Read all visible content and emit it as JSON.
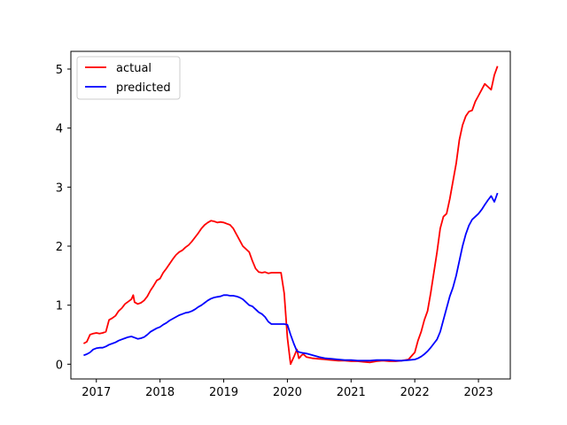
{
  "chart_data": {
    "type": "line",
    "title": "",
    "xlabel": "",
    "ylabel": "",
    "xlim": [
      2016.6,
      2023.5
    ],
    "ylim": [
      -0.25,
      5.3
    ],
    "grid": false,
    "legend_position": "top-left",
    "x_ticks": [
      2017,
      2018,
      2019,
      2020,
      2021,
      2022,
      2023
    ],
    "x_tick_labels": [
      "2017",
      "2018",
      "2019",
      "2020",
      "2021",
      "2022",
      "2023"
    ],
    "y_ticks": [
      0,
      1,
      2,
      3,
      4,
      5
    ],
    "y_tick_labels": [
      "0",
      "1",
      "2",
      "3",
      "4",
      "5"
    ],
    "series": [
      {
        "name": "actual",
        "color": "#ff0000",
        "x": [
          2016.8,
          2016.85,
          2016.9,
          2016.95,
          2017.0,
          2017.05,
          2017.1,
          2017.15,
          2017.2,
          2017.25,
          2017.3,
          2017.35,
          2017.4,
          2017.45,
          2017.5,
          2017.55,
          2017.58,
          2017.6,
          2017.65,
          2017.7,
          2017.75,
          2017.8,
          2017.85,
          2017.9,
          2017.95,
          2018.0,
          2018.05,
          2018.1,
          2018.15,
          2018.2,
          2018.25,
          2018.3,
          2018.35,
          2018.4,
          2018.45,
          2018.5,
          2018.55,
          2018.6,
          2018.65,
          2018.7,
          2018.75,
          2018.8,
          2018.85,
          2018.9,
          2018.95,
          2019.0,
          2019.05,
          2019.1,
          2019.15,
          2019.2,
          2019.25,
          2019.3,
          2019.35,
          2019.4,
          2019.45,
          2019.5,
          2019.55,
          2019.6,
          2019.65,
          2019.7,
          2019.75,
          2019.8,
          2019.85,
          2019.9,
          2019.95,
          2020.0,
          2020.05,
          2020.1,
          2020.15,
          2020.18,
          2020.2,
          2020.22,
          2020.25,
          2020.3,
          2020.4,
          2020.5,
          2020.6,
          2020.7,
          2020.8,
          2020.9,
          2021.0,
          2021.1,
          2021.2,
          2021.3,
          2021.4,
          2021.5,
          2021.6,
          2021.7,
          2021.8,
          2021.9,
          2022.0,
          2022.05,
          2022.1,
          2022.15,
          2022.2,
          2022.25,
          2022.3,
          2022.35,
          2022.4,
          2022.45,
          2022.5,
          2022.55,
          2022.6,
          2022.65,
          2022.7,
          2022.75,
          2022.8,
          2022.85,
          2022.9,
          2022.95,
          2023.0,
          2023.05,
          2023.1,
          2023.15,
          2023.2,
          2023.25,
          2023.3
        ],
        "y": [
          0.35,
          0.38,
          0.5,
          0.52,
          0.53,
          0.52,
          0.53,
          0.55,
          0.75,
          0.78,
          0.82,
          0.9,
          0.95,
          1.02,
          1.06,
          1.1,
          1.17,
          1.05,
          1.02,
          1.04,
          1.08,
          1.15,
          1.25,
          1.33,
          1.42,
          1.45,
          1.55,
          1.62,
          1.7,
          1.78,
          1.85,
          1.9,
          1.93,
          1.98,
          2.02,
          2.08,
          2.15,
          2.22,
          2.3,
          2.36,
          2.4,
          2.43,
          2.42,
          2.4,
          2.41,
          2.4,
          2.38,
          2.36,
          2.3,
          2.2,
          2.1,
          2.0,
          1.95,
          1.9,
          1.75,
          1.62,
          1.56,
          1.55,
          1.56,
          1.54,
          1.55,
          1.55,
          1.55,
          1.55,
          1.2,
          0.45,
          0.0,
          0.12,
          0.25,
          0.1,
          0.12,
          0.15,
          0.17,
          0.12,
          0.1,
          0.09,
          0.08,
          0.07,
          0.06,
          0.06,
          0.05,
          0.05,
          0.04,
          0.03,
          0.05,
          0.06,
          0.05,
          0.05,
          0.06,
          0.08,
          0.2,
          0.4,
          0.55,
          0.75,
          0.9,
          1.2,
          1.55,
          1.9,
          2.3,
          2.5,
          2.55,
          2.8,
          3.1,
          3.4,
          3.8,
          4.05,
          4.2,
          4.28,
          4.3,
          4.45,
          4.55,
          4.65,
          4.75,
          4.7,
          4.65,
          4.9,
          5.05
        ]
      },
      {
        "name": "predicted",
        "color": "#0000ff",
        "x": [
          2016.8,
          2016.85,
          2016.9,
          2016.95,
          2017.0,
          2017.05,
          2017.1,
          2017.15,
          2017.2,
          2017.25,
          2017.3,
          2017.35,
          2017.4,
          2017.45,
          2017.5,
          2017.55,
          2017.6,
          2017.65,
          2017.7,
          2017.75,
          2017.8,
          2017.85,
          2017.9,
          2017.95,
          2018.0,
          2018.05,
          2018.1,
          2018.15,
          2018.2,
          2018.25,
          2018.3,
          2018.35,
          2018.4,
          2018.45,
          2018.5,
          2018.55,
          2018.6,
          2018.65,
          2018.7,
          2018.75,
          2018.8,
          2018.85,
          2018.9,
          2018.95,
          2019.0,
          2019.05,
          2019.1,
          2019.15,
          2019.2,
          2019.25,
          2019.3,
          2019.35,
          2019.4,
          2019.45,
          2019.5,
          2019.55,
          2019.6,
          2019.65,
          2019.7,
          2019.75,
          2019.8,
          2019.85,
          2019.9,
          2019.95,
          2020.0,
          2020.05,
          2020.1,
          2020.15,
          2020.2,
          2020.25,
          2020.3,
          2020.4,
          2020.5,
          2020.6,
          2020.7,
          2020.8,
          2020.9,
          2021.0,
          2021.1,
          2021.2,
          2021.3,
          2021.4,
          2021.5,
          2021.6,
          2021.7,
          2021.8,
          2021.9,
          2022.0,
          2022.05,
          2022.1,
          2022.15,
          2022.2,
          2022.25,
          2022.3,
          2022.35,
          2022.4,
          2022.45,
          2022.5,
          2022.55,
          2022.6,
          2022.65,
          2022.7,
          2022.75,
          2022.8,
          2022.85,
          2022.9,
          2022.95,
          2023.0,
          2023.05,
          2023.1,
          2023.15,
          2023.2,
          2023.25,
          2023.3
        ],
        "y": [
          0.15,
          0.17,
          0.2,
          0.25,
          0.27,
          0.28,
          0.28,
          0.3,
          0.33,
          0.35,
          0.37,
          0.4,
          0.42,
          0.44,
          0.46,
          0.47,
          0.45,
          0.43,
          0.44,
          0.46,
          0.5,
          0.55,
          0.58,
          0.61,
          0.63,
          0.67,
          0.7,
          0.74,
          0.77,
          0.8,
          0.83,
          0.85,
          0.87,
          0.88,
          0.9,
          0.93,
          0.97,
          1.0,
          1.04,
          1.08,
          1.11,
          1.13,
          1.14,
          1.15,
          1.17,
          1.17,
          1.16,
          1.16,
          1.15,
          1.13,
          1.1,
          1.05,
          1.0,
          0.98,
          0.93,
          0.88,
          0.85,
          0.8,
          0.72,
          0.68,
          0.68,
          0.68,
          0.68,
          0.68,
          0.67,
          0.5,
          0.35,
          0.22,
          0.2,
          0.19,
          0.18,
          0.15,
          0.12,
          0.1,
          0.09,
          0.08,
          0.07,
          0.07,
          0.06,
          0.06,
          0.06,
          0.07,
          0.07,
          0.07,
          0.06,
          0.06,
          0.07,
          0.08,
          0.1,
          0.13,
          0.17,
          0.22,
          0.28,
          0.35,
          0.42,
          0.55,
          0.75,
          0.95,
          1.15,
          1.3,
          1.5,
          1.75,
          2.0,
          2.2,
          2.35,
          2.45,
          2.5,
          2.55,
          2.62,
          2.7,
          2.78,
          2.85,
          2.75,
          2.9
        ]
      }
    ]
  }
}
